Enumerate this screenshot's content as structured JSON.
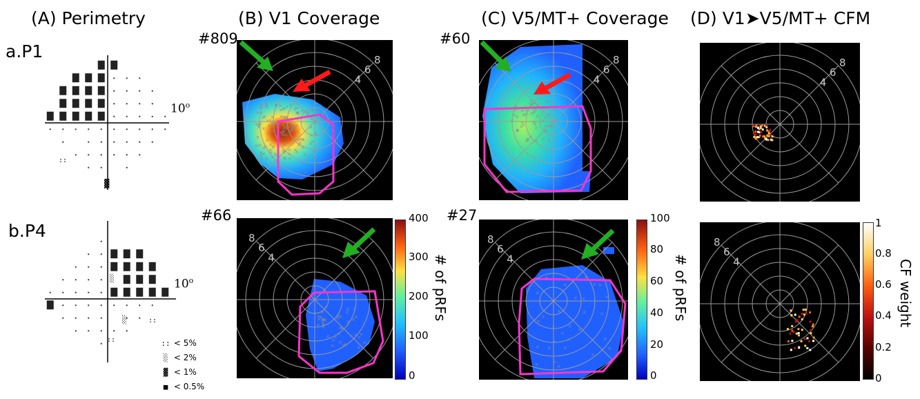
{
  "columns": [
    {
      "title": "(A) Perimetry"
    },
    {
      "title": "(B) V1 Coverage"
    },
    {
      "title": "(C) V5/MT+ Coverage"
    },
    {
      "title": "(D) V1➤V5/MT+ CFM"
    }
  ],
  "rows": [
    {
      "label": "a.P1",
      "b_count": "#809",
      "c_count": "#60"
    },
    {
      "label": "b.P4",
      "b_count": "#66",
      "c_count": "#27"
    }
  ],
  "perimetry": {
    "eccentricity_label": "10",
    "eccentricity_sup": "o"
  },
  "ring_labels": [
    "8",
    "6",
    "4"
  ],
  "legend": [
    {
      "symbol": "::",
      "text": "< 5%"
    },
    {
      "symbol": "░",
      "text": "< 2%"
    },
    {
      "symbol": "▓",
      "text": "< 1%"
    },
    {
      "symbol": "■",
      "text": "< 0.5%"
    }
  ],
  "colorbars": {
    "v1": {
      "ticks": [
        "400",
        "300",
        "200",
        "100",
        "0"
      ],
      "title": "# of pRFs"
    },
    "v5": {
      "ticks": [
        "100",
        "80",
        "60",
        "40",
        "20",
        "0"
      ],
      "title": "# of pRFs"
    },
    "cf": {
      "ticks": [
        "1",
        "0.8",
        "0.6",
        "0.4",
        "0.2",
        "0"
      ],
      "title": "CF weight"
    }
  },
  "colors": {
    "background": "#000000",
    "polar_grid": "#9a9a9a",
    "boundary": "#ff33cc",
    "arrow_green": "#22b022",
    "arrow_red": "#ff1a1a",
    "coverage_blue": "#2060ff"
  }
}
